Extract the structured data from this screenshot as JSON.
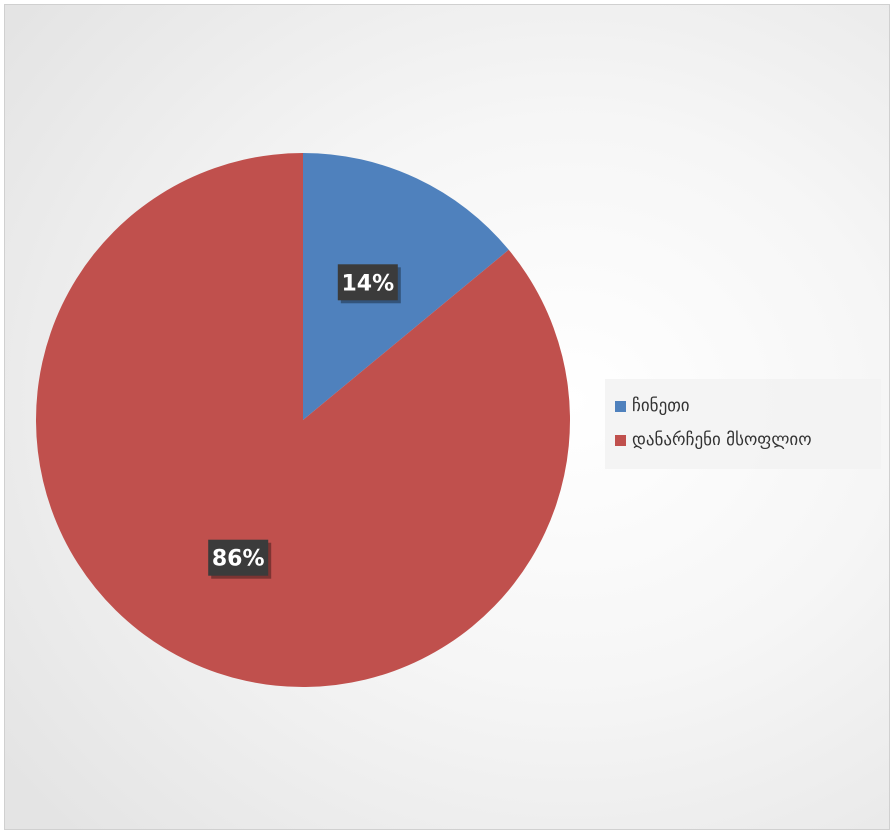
{
  "chart_data": {
    "type": "pie",
    "categories": [
      "ჩინეთი",
      "დანარჩენი მსოფლიო"
    ],
    "values": [
      14,
      86
    ],
    "data_labels": [
      "14%",
      "86%"
    ],
    "colors": [
      "#4F81BD",
      "#C0504D"
    ],
    "legend_position": "right",
    "title": ""
  }
}
